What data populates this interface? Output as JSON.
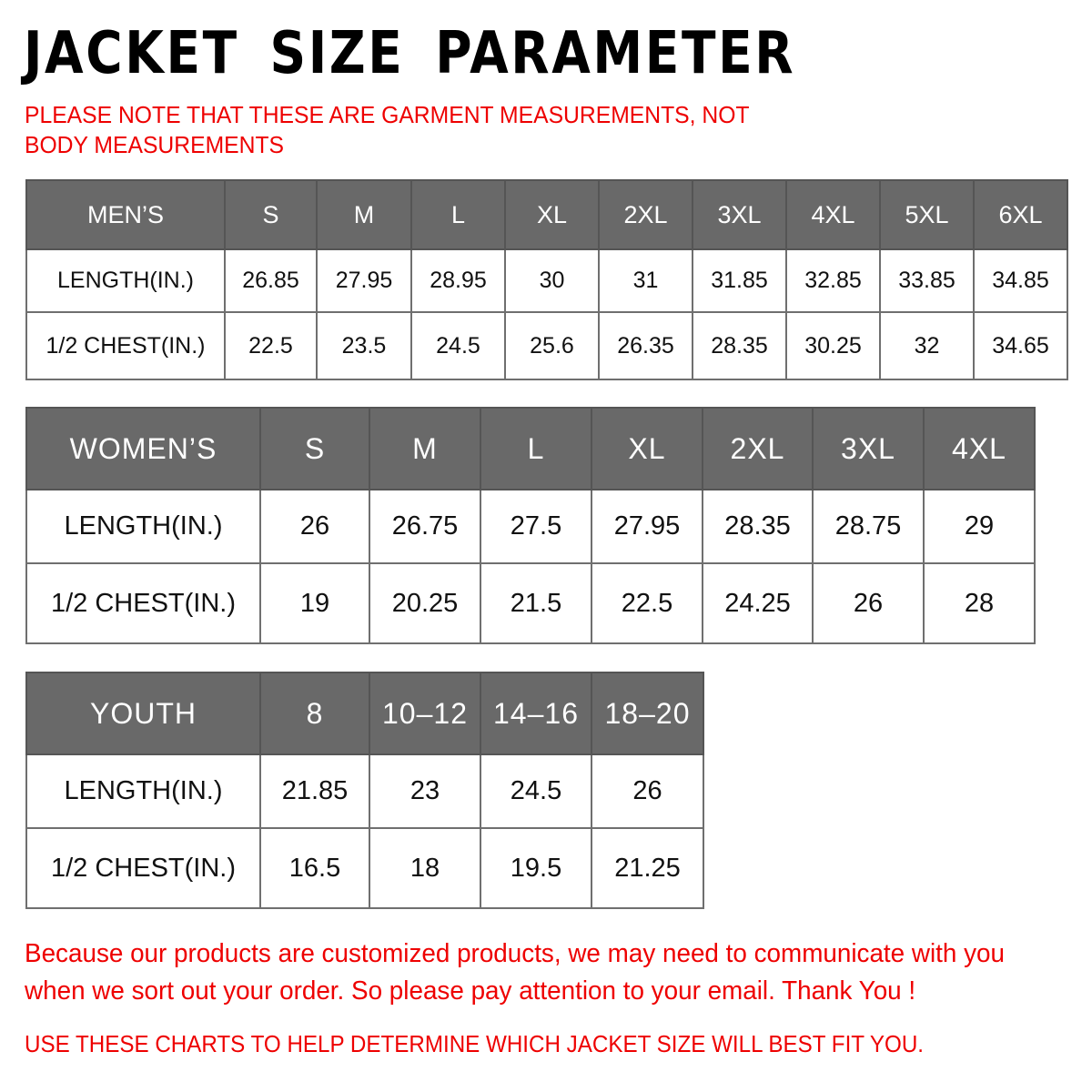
{
  "title": "JACKET SIZE PARAMETER",
  "note": "PLEASE NOTE THAT THESE ARE GARMENT MEASUREMENTS, NOT BODY MEASUREMENTS",
  "tables": {
    "men": {
      "header": [
        "MEN’S",
        "S",
        "M",
        "L",
        "XL",
        "2XL",
        "3XL",
        "4XL",
        "5XL",
        "6XL"
      ],
      "rows": [
        [
          "LENGTH(IN.)",
          "26.85",
          "27.95",
          "28.95",
          "30",
          "31",
          "31.85",
          "32.85",
          "33.85",
          "34.85"
        ],
        [
          "1/2 CHEST(IN.)",
          "22.5",
          "23.5",
          "24.5",
          "25.6",
          "26.35",
          "28.35",
          "30.25",
          "32",
          "34.65"
        ]
      ]
    },
    "women": {
      "header": [
        "WOMEN’S",
        "S",
        "M",
        "L",
        "XL",
        "2XL",
        "3XL",
        "4XL"
      ],
      "rows": [
        [
          "LENGTH(IN.)",
          "26",
          "26.75",
          "27.5",
          "27.95",
          "28.35",
          "28.75",
          "29"
        ],
        [
          "1/2 CHEST(IN.)",
          "19",
          "20.25",
          "21.5",
          "22.5",
          "24.25",
          "26",
          "28"
        ]
      ]
    },
    "youth": {
      "header": [
        "YOUTH",
        "8",
        "10–12",
        "14–16",
        "18–20"
      ],
      "rows": [
        [
          "LENGTH(IN.)",
          "21.85",
          "23",
          "24.5",
          "26"
        ],
        [
          "1/2 CHEST(IN.)",
          "16.5",
          "18",
          "19.5",
          "21.25"
        ]
      ]
    }
  },
  "footer": {
    "message": "Because our products are customized products, we may need to communicate with you when we sort out your order. So please pay attention to your email. Thank You !",
    "advice": "USE THESE CHARTS TO HELP DETERMINE WHICH JACKET SIZE WILL BEST FIT YOU."
  },
  "colors": {
    "header_bg": "#696969",
    "accent_red": "#e00000",
    "text": "#111111"
  }
}
